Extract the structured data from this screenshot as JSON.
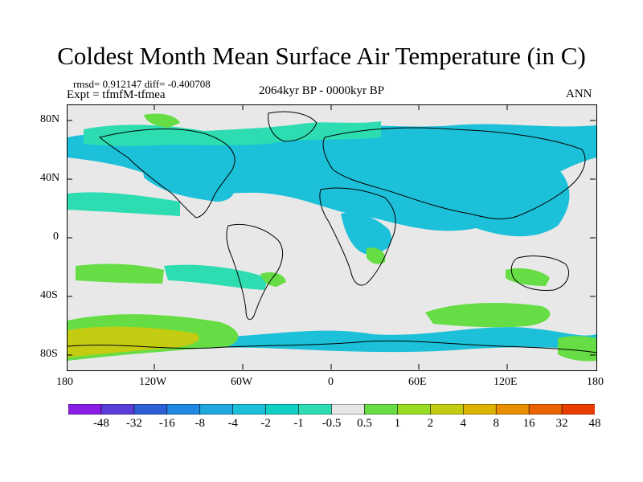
{
  "title": "Coldest Month Mean Surface Air Temperature (in C)",
  "stats": "rmsd= 0.912147 diff= -0.400708",
  "experiment": "Expt = tfmfM-tfmea",
  "period": "2064kyr BP - 0000kyr BP",
  "season": "ANN",
  "lat_ticks": [
    "80N",
    "40N",
    "0",
    "40S",
    "80S"
  ],
  "lon_ticks": [
    "180",
    "120W",
    "60W",
    "0",
    "60E",
    "120E",
    "180"
  ],
  "colorbar": {
    "labels": [
      "-48",
      "-32",
      "-16",
      "-8",
      "-4",
      "-2",
      "-1",
      "-0.5",
      "0.5",
      "1",
      "2",
      "4",
      "8",
      "16",
      "32",
      "48"
    ],
    "colors": [
      "#8a1ee6",
      "#5a3cd8",
      "#2f5fd6",
      "#1f88e0",
      "#1ea8de",
      "#1cc0d8",
      "#10d0c4",
      "#2ddcb0",
      "#e6e6e6",
      "#66dd44",
      "#99dd22",
      "#c4cc11",
      "#dcb400",
      "#e89000",
      "#ec6400",
      "#e83c00"
    ]
  },
  "colors": {
    "background_field": "#e8e8e8",
    "cool_primary": "#1cc0d8",
    "cool_light": "#2ddcb0",
    "warm_primary": "#66dd44",
    "warm_yellow": "#c4cc11"
  }
}
